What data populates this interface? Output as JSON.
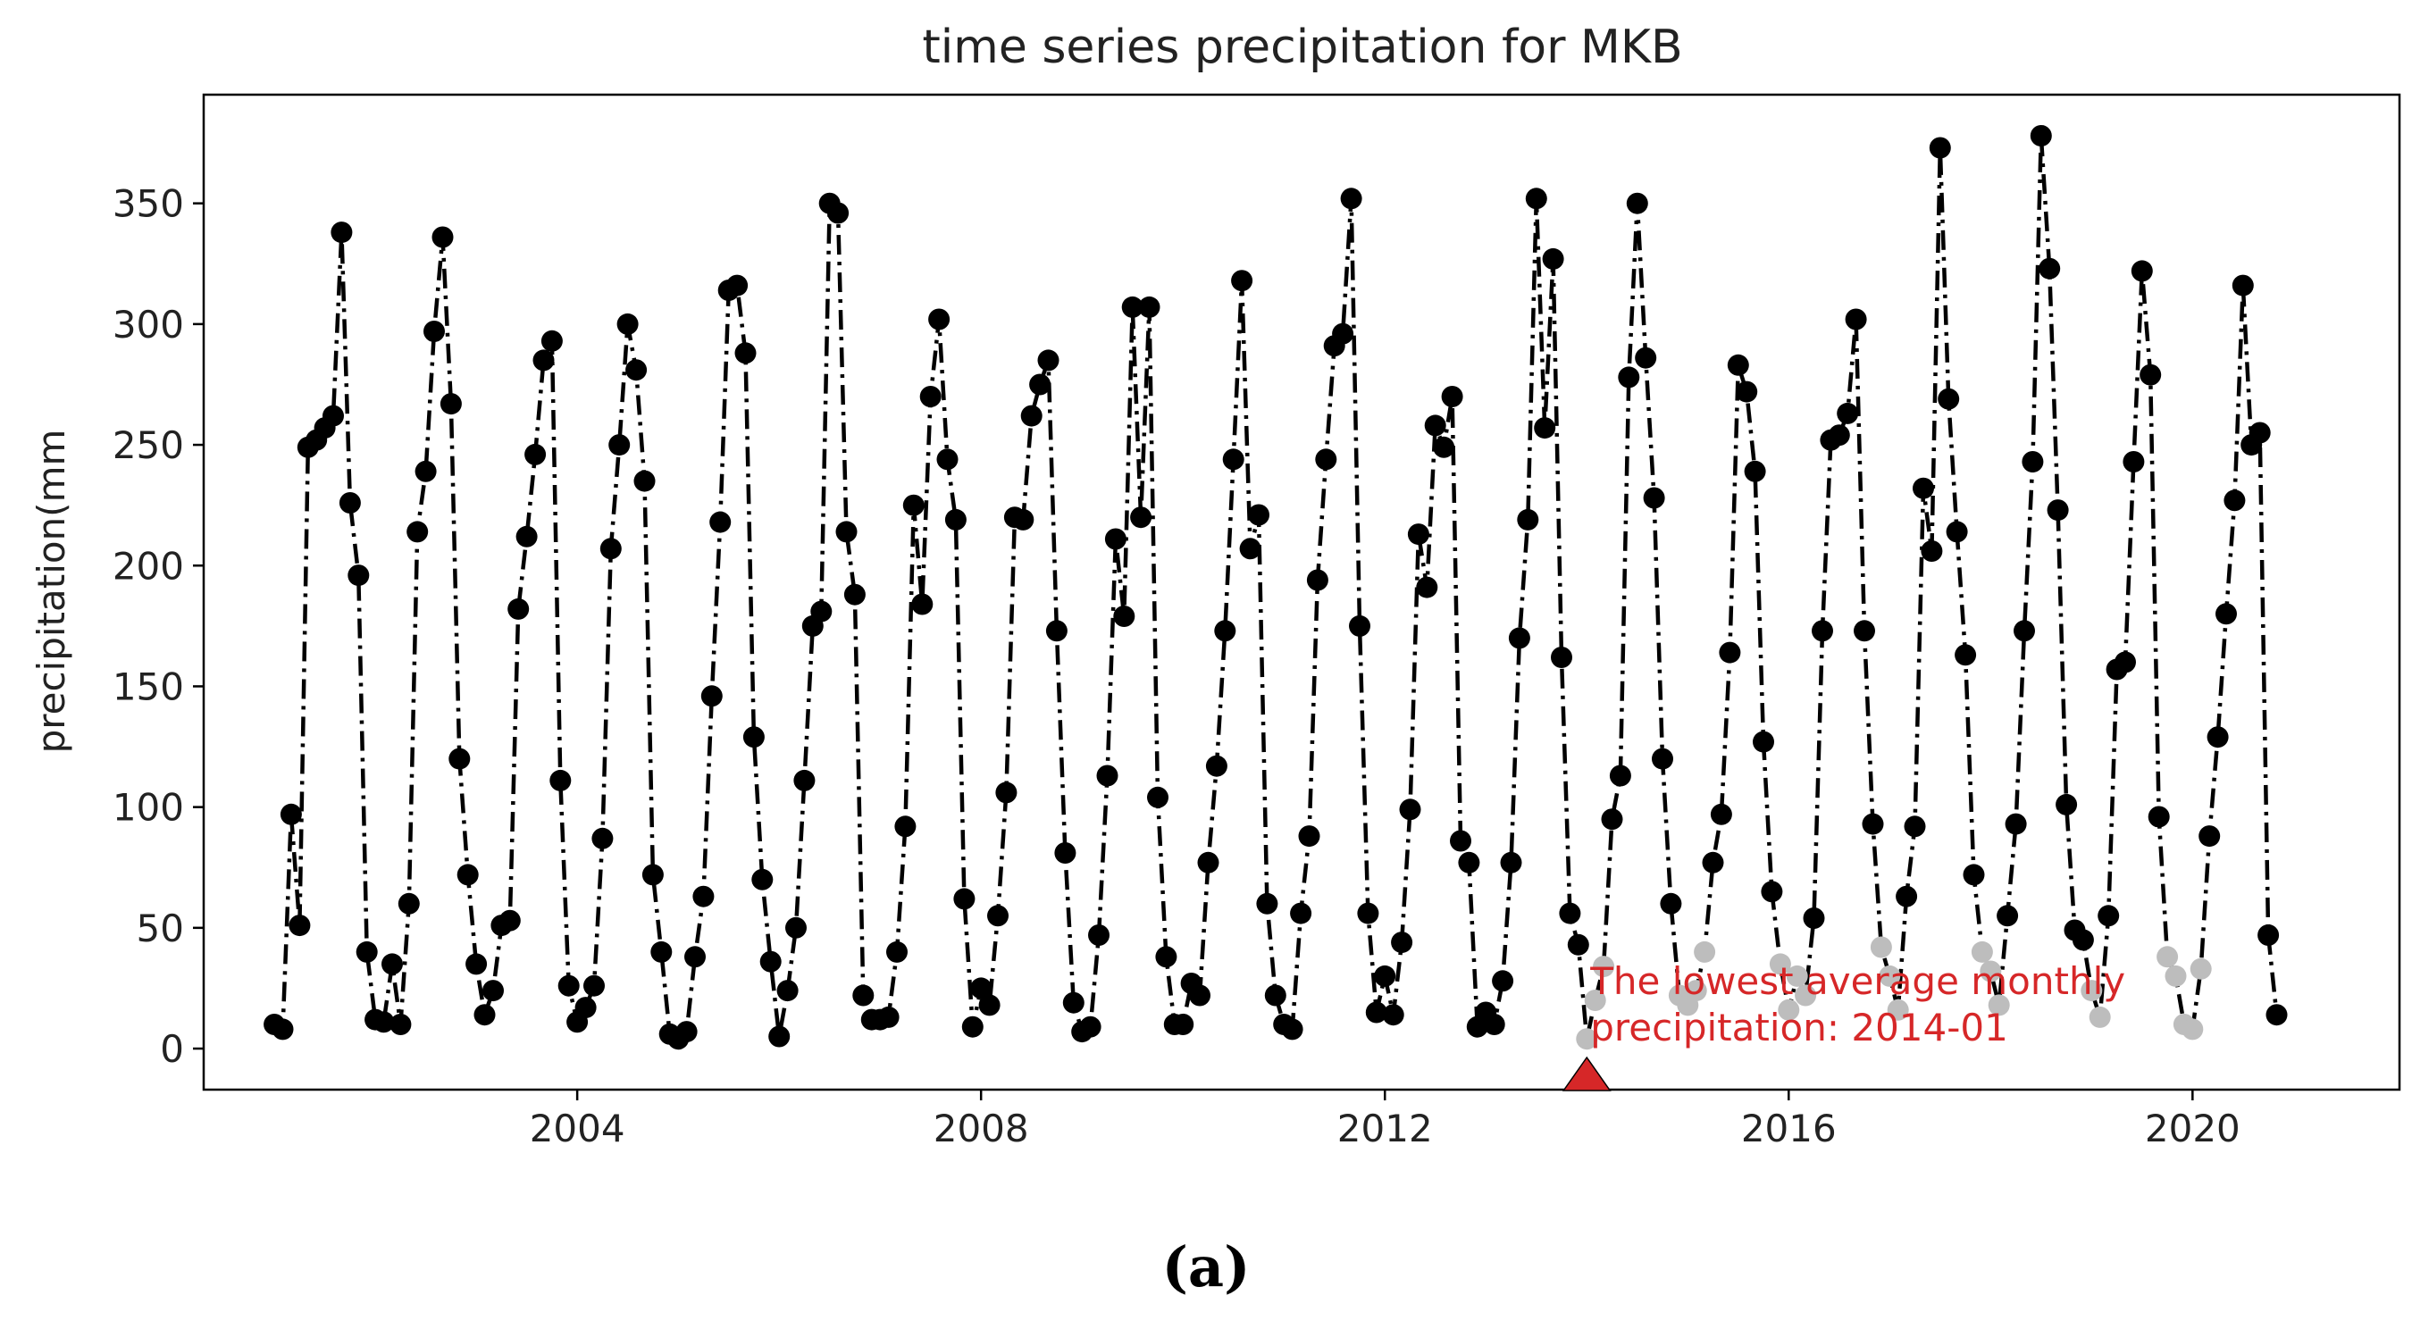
{
  "panel_label": "(a)",
  "chart_data": {
    "type": "line",
    "title": "time series precipitation for MKB",
    "xlabel": "",
    "ylabel": "precipitation(mm",
    "xlim": [
      2000.3,
      2022.05
    ],
    "ylim": [
      -17,
      395
    ],
    "x_ticks": [
      2004,
      2008,
      2012,
      2016,
      2020
    ],
    "x_tick_labels": [
      "2004",
      "2008",
      "2012",
      "2016",
      "2020"
    ],
    "y_ticks": [
      0,
      50,
      100,
      150,
      200,
      250,
      300,
      350
    ],
    "y_tick_labels": [
      "0",
      "50",
      "100",
      "150",
      "200",
      "250",
      "300",
      "350"
    ],
    "grid": false,
    "series": [
      {
        "line_style": "dash-dot",
        "color": "#000000",
        "marker": "circle",
        "faded_color": "#bdbdbd",
        "faded_range": [
          2014.0,
          2020.3
        ],
        "faded_threshold": 45,
        "points": [
          [
            "2001-01",
            10
          ],
          [
            "2001-02",
            8
          ],
          [
            "2001-03",
            97
          ],
          [
            "2001-04",
            51
          ],
          [
            "2001-05",
            249
          ],
          [
            "2001-06",
            252
          ],
          [
            "2001-07",
            257
          ],
          [
            "2001-08",
            262
          ],
          [
            "2001-09",
            338
          ],
          [
            "2001-10",
            226
          ],
          [
            "2001-11",
            196
          ],
          [
            "2001-12",
            40
          ],
          [
            "2002-01",
            12
          ],
          [
            "2002-02",
            11
          ],
          [
            "2002-03",
            35
          ],
          [
            "2002-04",
            10
          ],
          [
            "2002-05",
            60
          ],
          [
            "2002-06",
            214
          ],
          [
            "2002-07",
            239
          ],
          [
            "2002-08",
            297
          ],
          [
            "2002-09",
            336
          ],
          [
            "2002-10",
            267
          ],
          [
            "2002-11",
            120
          ],
          [
            "2002-12",
            72
          ],
          [
            "2003-01",
            35
          ],
          [
            "2003-02",
            14
          ],
          [
            "2003-03",
            24
          ],
          [
            "2003-04",
            51
          ],
          [
            "2003-05",
            53
          ],
          [
            "2003-06",
            182
          ],
          [
            "2003-07",
            212
          ],
          [
            "2003-08",
            246
          ],
          [
            "2003-09",
            285
          ],
          [
            "2003-10",
            293
          ],
          [
            "2003-11",
            111
          ],
          [
            "2003-12",
            26
          ],
          [
            "2004-01",
            11
          ],
          [
            "2004-02",
            17
          ],
          [
            "2004-03",
            26
          ],
          [
            "2004-04",
            87
          ],
          [
            "2004-05",
            207
          ],
          [
            "2004-06",
            250
          ],
          [
            "2004-07",
            300
          ],
          [
            "2004-08",
            281
          ],
          [
            "2004-09",
            235
          ],
          [
            "2004-10",
            72
          ],
          [
            "2004-11",
            40
          ],
          [
            "2004-12",
            6
          ],
          [
            "2005-01",
            4
          ],
          [
            "2005-02",
            7
          ],
          [
            "2005-03",
            38
          ],
          [
            "2005-04",
            63
          ],
          [
            "2005-05",
            146
          ],
          [
            "2005-06",
            218
          ],
          [
            "2005-07",
            314
          ],
          [
            "2005-08",
            316
          ],
          [
            "2005-09",
            288
          ],
          [
            "2005-10",
            129
          ],
          [
            "2005-11",
            70
          ],
          [
            "2005-12",
            36
          ],
          [
            "2006-01",
            5
          ],
          [
            "2006-02",
            24
          ],
          [
            "2006-03",
            50
          ],
          [
            "2006-04",
            111
          ],
          [
            "2006-05",
            175
          ],
          [
            "2006-06",
            181
          ],
          [
            "2006-07",
            350
          ],
          [
            "2006-08",
            346
          ],
          [
            "2006-09",
            214
          ],
          [
            "2006-10",
            188
          ],
          [
            "2006-11",
            22
          ],
          [
            "2006-12",
            12
          ],
          [
            "2007-01",
            12
          ],
          [
            "2007-02",
            13
          ],
          [
            "2007-03",
            40
          ],
          [
            "2007-04",
            92
          ],
          [
            "2007-05",
            225
          ],
          [
            "2007-06",
            184
          ],
          [
            "2007-07",
            270
          ],
          [
            "2007-08",
            302
          ],
          [
            "2007-09",
            244
          ],
          [
            "2007-10",
            219
          ],
          [
            "2007-11",
            62
          ],
          [
            "2007-12",
            9
          ],
          [
            "2008-01",
            25
          ],
          [
            "2008-02",
            18
          ],
          [
            "2008-03",
            55
          ],
          [
            "2008-04",
            106
          ],
          [
            "2008-05",
            220
          ],
          [
            "2008-06",
            219
          ],
          [
            "2008-07",
            262
          ],
          [
            "2008-08",
            275
          ],
          [
            "2008-09",
            285
          ],
          [
            "2008-10",
            173
          ],
          [
            "2008-11",
            81
          ],
          [
            "2008-12",
            19
          ],
          [
            "2009-01",
            7
          ],
          [
            "2009-02",
            9
          ],
          [
            "2009-03",
            47
          ],
          [
            "2009-04",
            113
          ],
          [
            "2009-05",
            211
          ],
          [
            "2009-06",
            179
          ],
          [
            "2009-07",
            307
          ],
          [
            "2009-08",
            220
          ],
          [
            "2009-09",
            307
          ],
          [
            "2009-10",
            104
          ],
          [
            "2009-11",
            38
          ],
          [
            "2009-12",
            10
          ],
          [
            "2010-01",
            10
          ],
          [
            "2010-02",
            27
          ],
          [
            "2010-03",
            22
          ],
          [
            "2010-04",
            77
          ],
          [
            "2010-05",
            117
          ],
          [
            "2010-06",
            173
          ],
          [
            "2010-07",
            244
          ],
          [
            "2010-08",
            318
          ],
          [
            "2010-09",
            207
          ],
          [
            "2010-10",
            221
          ],
          [
            "2010-11",
            60
          ],
          [
            "2010-12",
            22
          ],
          [
            "2011-01",
            10
          ],
          [
            "2011-02",
            8
          ],
          [
            "2011-03",
            56
          ],
          [
            "2011-04",
            88
          ],
          [
            "2011-05",
            194
          ],
          [
            "2011-06",
            244
          ],
          [
            "2011-07",
            291
          ],
          [
            "2011-08",
            296
          ],
          [
            "2011-09",
            352
          ],
          [
            "2011-10",
            175
          ],
          [
            "2011-11",
            56
          ],
          [
            "2011-12",
            15
          ],
          [
            "2012-01",
            30
          ],
          [
            "2012-02",
            14
          ],
          [
            "2012-03",
            44
          ],
          [
            "2012-04",
            99
          ],
          [
            "2012-05",
            213
          ],
          [
            "2012-06",
            191
          ],
          [
            "2012-07",
            258
          ],
          [
            "2012-08",
            249
          ],
          [
            "2012-09",
            270
          ],
          [
            "2012-10",
            86
          ],
          [
            "2012-11",
            77
          ],
          [
            "2012-12",
            9
          ],
          [
            "2013-01",
            15
          ],
          [
            "2013-02",
            10
          ],
          [
            "2013-03",
            28
          ],
          [
            "2013-04",
            77
          ],
          [
            "2013-05",
            170
          ],
          [
            "2013-06",
            219
          ],
          [
            "2013-07",
            352
          ],
          [
            "2013-08",
            257
          ],
          [
            "2013-09",
            327
          ],
          [
            "2013-10",
            162
          ],
          [
            "2013-11",
            56
          ],
          [
            "2013-12",
            43
          ],
          [
            "2014-01",
            4
          ],
          [
            "2014-02",
            20
          ],
          [
            "2014-03",
            34
          ],
          [
            "2014-04",
            95
          ],
          [
            "2014-05",
            113
          ],
          [
            "2014-06",
            278
          ],
          [
            "2014-07",
            350
          ],
          [
            "2014-08",
            286
          ],
          [
            "2014-09",
            228
          ],
          [
            "2014-10",
            120
          ],
          [
            "2014-11",
            60
          ],
          [
            "2014-12",
            22
          ],
          [
            "2015-01",
            18
          ],
          [
            "2015-02",
            24
          ],
          [
            "2015-03",
            40
          ],
          [
            "2015-04",
            77
          ],
          [
            "2015-05",
            97
          ],
          [
            "2015-06",
            164
          ],
          [
            "2015-07",
            283
          ],
          [
            "2015-08",
            272
          ],
          [
            "2015-09",
            239
          ],
          [
            "2015-10",
            127
          ],
          [
            "2015-11",
            65
          ],
          [
            "2015-12",
            35
          ],
          [
            "2016-01",
            16
          ],
          [
            "2016-02",
            30
          ],
          [
            "2016-03",
            22
          ],
          [
            "2016-04",
            54
          ],
          [
            "2016-05",
            173
          ],
          [
            "2016-06",
            252
          ],
          [
            "2016-07",
            254
          ],
          [
            "2016-08",
            263
          ],
          [
            "2016-09",
            302
          ],
          [
            "2016-10",
            173
          ],
          [
            "2016-11",
            93
          ],
          [
            "2016-12",
            42
          ],
          [
            "2017-01",
            30
          ],
          [
            "2017-02",
            16
          ],
          [
            "2017-03",
            63
          ],
          [
            "2017-04",
            92
          ],
          [
            "2017-05",
            232
          ],
          [
            "2017-06",
            206
          ],
          [
            "2017-07",
            373
          ],
          [
            "2017-08",
            269
          ],
          [
            "2017-09",
            214
          ],
          [
            "2017-10",
            163
          ],
          [
            "2017-11",
            72
          ],
          [
            "2017-12",
            40
          ],
          [
            "2018-01",
            32
          ],
          [
            "2018-02",
            18
          ],
          [
            "2018-03",
            55
          ],
          [
            "2018-04",
            93
          ],
          [
            "2018-05",
            173
          ],
          [
            "2018-06",
            243
          ],
          [
            "2018-07",
            378
          ],
          [
            "2018-08",
            323
          ],
          [
            "2018-09",
            223
          ],
          [
            "2018-10",
            101
          ],
          [
            "2018-11",
            49
          ],
          [
            "2018-12",
            45
          ],
          [
            "2019-01",
            24
          ],
          [
            "2019-02",
            13
          ],
          [
            "2019-03",
            55
          ],
          [
            "2019-04",
            157
          ],
          [
            "2019-05",
            160
          ],
          [
            "2019-06",
            243
          ],
          [
            "2019-07",
            322
          ],
          [
            "2019-08",
            279
          ],
          [
            "2019-09",
            96
          ],
          [
            "2019-10",
            38
          ],
          [
            "2019-11",
            30
          ],
          [
            "2019-12",
            10
          ],
          [
            "2020-01",
            8
          ],
          [
            "2020-02",
            33
          ],
          [
            "2020-03",
            88
          ],
          [
            "2020-04",
            129
          ],
          [
            "2020-05",
            180
          ],
          [
            "2020-06",
            227
          ],
          [
            "2020-07",
            316
          ],
          [
            "2020-08",
            250
          ],
          [
            "2020-09",
            255
          ],
          [
            "2020-10",
            47
          ],
          [
            "2020-11",
            14
          ]
        ]
      }
    ],
    "annotation": {
      "text_lines": [
        "The lowest average monthly",
        "precipitation: 2014-01"
      ],
      "x": "2014-01",
      "y": 4,
      "color": "#d62728",
      "marker": "triangle",
      "marker_color": "#d62728",
      "marker_y": -17
    }
  }
}
